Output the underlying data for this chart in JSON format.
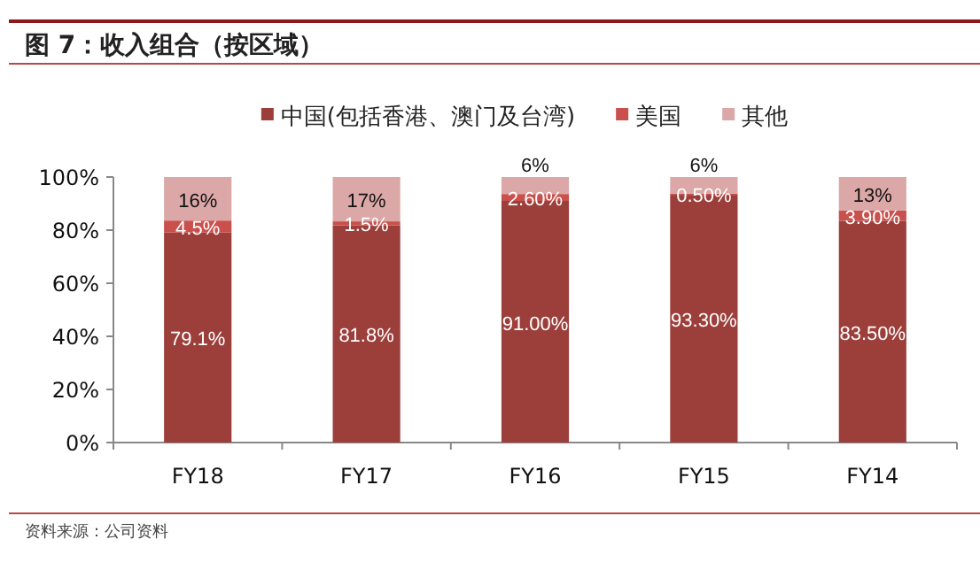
{
  "chart_data": {
    "type": "bar",
    "stacked": true,
    "title": "图 7：收入组合（按区域）",
    "annotations": [
      "资料来源：公司资料"
    ],
    "legend": "top",
    "categories": [
      "FY18",
      "FY17",
      "FY16",
      "FY15",
      "FY14"
    ],
    "ylim": [
      0,
      100
    ],
    "yticks": [
      {
        "value": 0,
        "label": "0%"
      },
      {
        "value": 20,
        "label": "20%"
      },
      {
        "value": 40,
        "label": "40%"
      },
      {
        "value": 60,
        "label": "60%"
      },
      {
        "value": 80,
        "label": "80%"
      },
      {
        "value": 100,
        "label": "100%"
      }
    ],
    "series": [
      {
        "name": "中国(包括香港、澳门及台湾)",
        "color": "#9c3f3b",
        "values": [
          79.1,
          81.8,
          91.0,
          93.3,
          83.5
        ],
        "value_labels": [
          "79.1%",
          "81.8%",
          "91.00%",
          "93.30%",
          "83.50%"
        ]
      },
      {
        "name": "美国",
        "color": "#c9504c",
        "values": [
          4.5,
          1.5,
          2.6,
          0.5,
          3.9
        ],
        "value_labels": [
          "4.5%",
          "1.5%",
          "2.60%",
          "0.50%",
          "3.90%"
        ]
      },
      {
        "name": "其他",
        "color": "#dba7a7",
        "values": [
          16.4,
          16.7,
          6.4,
          6.2,
          12.6
        ],
        "value_labels": [
          "16%",
          "17%",
          "6%",
          "6%",
          "13%"
        ]
      }
    ]
  }
}
